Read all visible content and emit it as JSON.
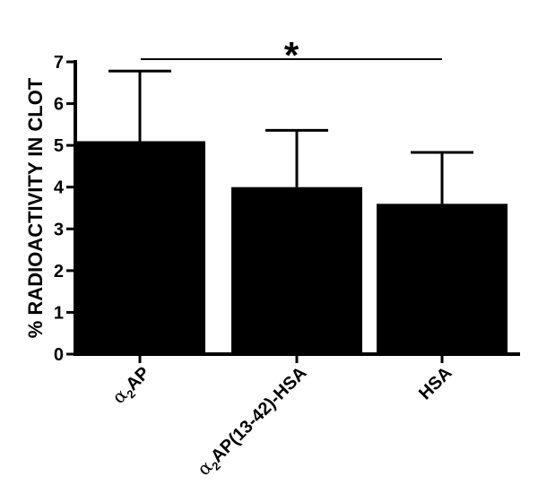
{
  "chart_data": {
    "type": "bar",
    "ylabel": "% RADIOACTIVITY IN CLOT",
    "ylim": [
      0,
      7
    ],
    "yticks": [
      0,
      1,
      2,
      3,
      4,
      5,
      6,
      7
    ],
    "grid": false,
    "legend": "none",
    "categories": [
      {
        "alpha": "α",
        "sub": "2",
        "rest": "AP"
      },
      {
        "alpha": "α",
        "sub": "2",
        "rest": "AP(13-42)-HSA"
      },
      {
        "alpha": "",
        "sub": "",
        "rest": "HSA"
      }
    ],
    "series": [
      {
        "values": [
          5.1,
          4.0,
          3.6
        ],
        "error_upper": [
          6.78,
          5.36,
          4.83
        ]
      }
    ],
    "significance": {
      "from": 0,
      "to": 2,
      "label": "*"
    },
    "colors": {
      "bar": "#000000",
      "axis": "#000000"
    }
  }
}
